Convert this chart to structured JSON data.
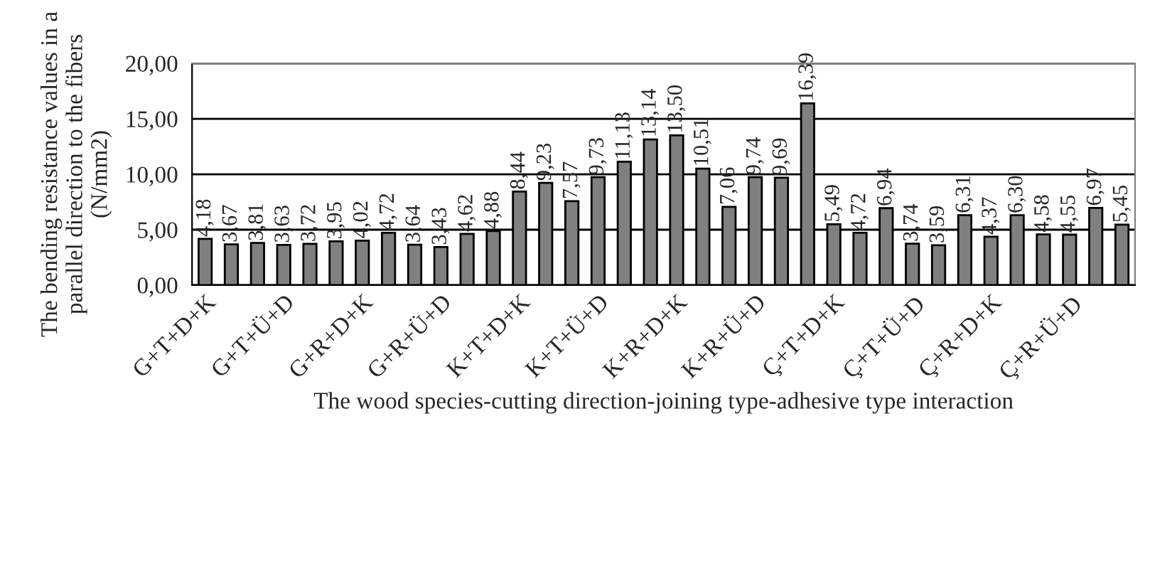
{
  "chart_data": {
    "type": "bar",
    "xlabel": "The wood species-cutting direction-joining type-adhesive type interaction",
    "ylabel": "The bending resistance values in a parallel direction to the fibers (N/mm2)",
    "categories": [
      "G+T+D+K",
      null,
      null,
      "G+T+Ü+D",
      null,
      null,
      "G+R+D+K",
      null,
      null,
      "G+R+Ü+D",
      null,
      null,
      "K+T+D+K",
      null,
      null,
      "K+T+Ü+D",
      null,
      null,
      "K+R+D+K",
      null,
      null,
      "K+R+Ü+D",
      null,
      null,
      "Ç+T+D+K",
      null,
      null,
      "Ç+T+Ü+D",
      null,
      null,
      "Ç+R+D+K",
      null,
      null,
      "Ç+R+Ü+D",
      null,
      null
    ],
    "values": [
      4.18,
      3.67,
      3.81,
      3.63,
      3.72,
      3.95,
      4.02,
      4.72,
      3.64,
      3.43,
      4.62,
      4.88,
      8.44,
      9.23,
      7.57,
      9.73,
      11.13,
      13.14,
      13.5,
      10.51,
      7.06,
      9.74,
      9.69,
      16.39,
      5.49,
      4.72,
      6.94,
      3.74,
      3.59,
      6.31,
      4.37,
      6.3,
      4.58,
      4.55,
      6.97,
      5.45
    ],
    "value_labels": [
      "4,18",
      "3,67",
      "3,81",
      "3,63",
      "3,72",
      "3,95",
      "4,02",
      "4,72",
      "3,64",
      "3,43",
      "4,62",
      "4,88",
      "8,44",
      "9,23",
      "7,57",
      "9,73",
      "11,13",
      "13,14",
      "13,50",
      "10,51",
      "7,06",
      "9,74",
      "9,69",
      "16,39",
      "5,49",
      "4,72",
      "6,94",
      "3,74",
      "3,59",
      "6,31",
      "4,37",
      "6,30",
      "4,58",
      "4,55",
      "6,97",
      "5,45"
    ],
    "color": "#808080",
    "ylim": [
      0,
      20
    ],
    "yticks": [
      {
        "value": 0,
        "label": "0,00"
      },
      {
        "value": 5,
        "label": "5,00"
      },
      {
        "value": 10,
        "label": "10,00"
      },
      {
        "value": 15,
        "label": "15,00"
      },
      {
        "value": 20,
        "label": "20,00"
      }
    ],
    "grid": "y",
    "legend": false
  }
}
